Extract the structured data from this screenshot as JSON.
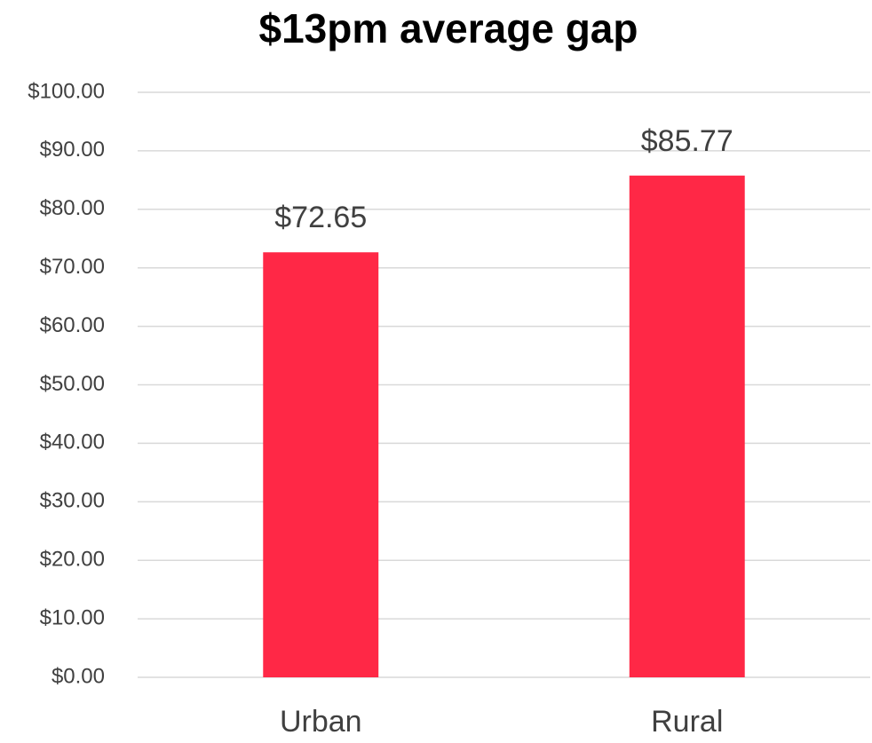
{
  "chart_data": {
    "type": "bar",
    "title": "$13pm average gap",
    "categories": [
      "Urban",
      "Rural"
    ],
    "values": [
      72.65,
      85.77
    ],
    "value_labels": [
      "$72.65",
      "$85.77"
    ],
    "color": "#ff2846",
    "ylim": [
      0,
      100
    ],
    "yticks": [
      {
        "value": 0,
        "label": "$0.00"
      },
      {
        "value": 10,
        "label": "$10.00"
      },
      {
        "value": 20,
        "label": "$20.00"
      },
      {
        "value": 30,
        "label": "$30.00"
      },
      {
        "value": 40,
        "label": "$40.00"
      },
      {
        "value": 50,
        "label": "$50.00"
      },
      {
        "value": 60,
        "label": "$60.00"
      },
      {
        "value": 70,
        "label": "$70.00"
      },
      {
        "value": 80,
        "label": "$80.00"
      },
      {
        "value": 90,
        "label": "$90.00"
      },
      {
        "value": 100,
        "label": "$100.00"
      }
    ],
    "grid": true
  }
}
